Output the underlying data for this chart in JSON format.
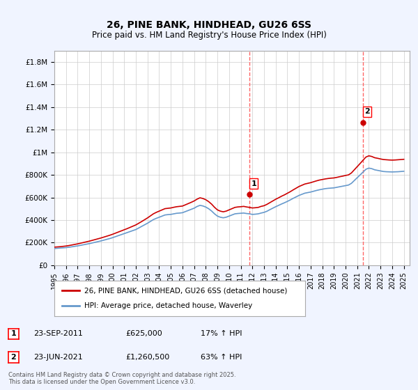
{
  "title": "26, PINE BANK, HINDHEAD, GU26 6SS",
  "subtitle": "Price paid vs. HM Land Registry's House Price Index (HPI)",
  "background_color": "#f0f4ff",
  "plot_bg_color": "#ffffff",
  "ylim": [
    0,
    1900000
  ],
  "yticks": [
    0,
    200000,
    400000,
    600000,
    800000,
    1000000,
    1200000,
    1400000,
    1600000,
    1800000
  ],
  "ytick_labels": [
    "£0",
    "£200K",
    "£400K",
    "£600K",
    "£800K",
    "£1M",
    "£1.2M",
    "£1.4M",
    "£1.6M",
    "£1.8M"
  ],
  "xlim_start": 1995.0,
  "xlim_end": 2025.5,
  "xticks": [
    1995,
    1996,
    1997,
    1998,
    1999,
    2000,
    2001,
    2002,
    2003,
    2004,
    2005,
    2006,
    2007,
    2008,
    2009,
    2010,
    2011,
    2012,
    2013,
    2014,
    2015,
    2016,
    2017,
    2018,
    2019,
    2020,
    2021,
    2022,
    2023,
    2024,
    2025
  ],
  "sale1_x": 2011.73,
  "sale1_y": 625000,
  "sale2_x": 2021.48,
  "sale2_y": 1260500,
  "sale1_label": "1",
  "sale2_label": "2",
  "red_line_color": "#cc0000",
  "blue_line_color": "#6699cc",
  "vline_color": "#ff6666",
  "legend_label_red": "26, PINE BANK, HINDHEAD, GU26 6SS (detached house)",
  "legend_label_blue": "HPI: Average price, detached house, Waverley",
  "table_row1": [
    "1",
    "23-SEP-2011",
    "£625,000",
    "17% ↑ HPI"
  ],
  "table_row2": [
    "2",
    "23-JUN-2021",
    "£1,260,500",
    "63% ↑ HPI"
  ],
  "footer": "Contains HM Land Registry data © Crown copyright and database right 2025.\nThis data is licensed under the Open Government Licence v3.0.",
  "hpi_x": [
    1995.0,
    1995.25,
    1995.5,
    1995.75,
    1996.0,
    1996.25,
    1996.5,
    1996.75,
    1997.0,
    1997.25,
    1997.5,
    1997.75,
    1998.0,
    1998.25,
    1998.5,
    1998.75,
    1999.0,
    1999.25,
    1999.5,
    1999.75,
    2000.0,
    2000.25,
    2000.5,
    2000.75,
    2001.0,
    2001.25,
    2001.5,
    2001.75,
    2002.0,
    2002.25,
    2002.5,
    2002.75,
    2003.0,
    2003.25,
    2003.5,
    2003.75,
    2004.0,
    2004.25,
    2004.5,
    2004.75,
    2005.0,
    2005.25,
    2005.5,
    2005.75,
    2006.0,
    2006.25,
    2006.5,
    2006.75,
    2007.0,
    2007.25,
    2007.5,
    2007.75,
    2008.0,
    2008.25,
    2008.5,
    2008.75,
    2009.0,
    2009.25,
    2009.5,
    2009.75,
    2010.0,
    2010.25,
    2010.5,
    2010.75,
    2011.0,
    2011.25,
    2011.5,
    2011.75,
    2012.0,
    2012.25,
    2012.5,
    2012.75,
    2013.0,
    2013.25,
    2013.5,
    2013.75,
    2014.0,
    2014.25,
    2014.5,
    2014.75,
    2015.0,
    2015.25,
    2015.5,
    2015.75,
    2016.0,
    2016.25,
    2016.5,
    2016.75,
    2017.0,
    2017.25,
    2017.5,
    2017.75,
    2018.0,
    2018.25,
    2018.5,
    2018.75,
    2019.0,
    2019.25,
    2019.5,
    2019.75,
    2020.0,
    2020.25,
    2020.5,
    2020.75,
    2021.0,
    2021.25,
    2021.5,
    2021.75,
    2022.0,
    2022.25,
    2022.5,
    2022.75,
    2023.0,
    2023.25,
    2023.5,
    2023.75,
    2024.0,
    2024.25,
    2024.5,
    2024.75,
    2025.0
  ],
  "hpi_y": [
    148000,
    150000,
    152000,
    154000,
    156000,
    159000,
    163000,
    167000,
    171000,
    176000,
    181000,
    186000,
    191000,
    197000,
    203000,
    209000,
    215000,
    222000,
    229000,
    236000,
    244000,
    253000,
    262000,
    271000,
    280000,
    289000,
    298000,
    307000,
    316000,
    330000,
    344000,
    358000,
    372000,
    388000,
    404000,
    415000,
    425000,
    435000,
    445000,
    448000,
    450000,
    455000,
    460000,
    462000,
    465000,
    475000,
    485000,
    495000,
    505000,
    520000,
    530000,
    525000,
    515000,
    500000,
    480000,
    455000,
    435000,
    425000,
    420000,
    425000,
    435000,
    445000,
    455000,
    458000,
    460000,
    462000,
    458000,
    455000,
    450000,
    452000,
    455000,
    462000,
    468000,
    478000,
    492000,
    505000,
    518000,
    530000,
    542000,
    553000,
    565000,
    578000,
    592000,
    605000,
    618000,
    628000,
    638000,
    643000,
    648000,
    655000,
    662000,
    668000,
    673000,
    678000,
    681000,
    683000,
    685000,
    690000,
    695000,
    700000,
    705000,
    710000,
    725000,
    750000,
    775000,
    800000,
    825000,
    850000,
    860000,
    855000,
    845000,
    840000,
    835000,
    830000,
    828000,
    827000,
    826000,
    827000,
    828000,
    830000,
    832000
  ],
  "red_x": [
    1995.0,
    1995.25,
    1995.5,
    1995.75,
    1996.0,
    1996.25,
    1996.5,
    1996.75,
    1997.0,
    1997.25,
    1997.5,
    1997.75,
    1998.0,
    1998.25,
    1998.5,
    1998.75,
    1999.0,
    1999.25,
    1999.5,
    1999.75,
    2000.0,
    2000.25,
    2000.5,
    2000.75,
    2001.0,
    2001.25,
    2001.5,
    2001.75,
    2002.0,
    2002.25,
    2002.5,
    2002.75,
    2003.0,
    2003.25,
    2003.5,
    2003.75,
    2004.0,
    2004.25,
    2004.5,
    2004.75,
    2005.0,
    2005.25,
    2005.5,
    2005.75,
    2006.0,
    2006.25,
    2006.5,
    2006.75,
    2007.0,
    2007.25,
    2007.5,
    2007.75,
    2008.0,
    2008.25,
    2008.5,
    2008.75,
    2009.0,
    2009.25,
    2009.5,
    2009.75,
    2010.0,
    2010.25,
    2010.5,
    2010.75,
    2011.0,
    2011.25,
    2011.5,
    2011.75,
    2012.0,
    2012.25,
    2012.5,
    2012.75,
    2013.0,
    2013.25,
    2013.5,
    2013.75,
    2014.0,
    2014.25,
    2014.5,
    2014.75,
    2015.0,
    2015.25,
    2015.5,
    2015.75,
    2016.0,
    2016.25,
    2016.5,
    2016.75,
    2017.0,
    2017.25,
    2017.5,
    2017.75,
    2018.0,
    2018.25,
    2018.5,
    2018.75,
    2019.0,
    2019.25,
    2019.5,
    2019.75,
    2020.0,
    2020.25,
    2020.5,
    2020.75,
    2021.0,
    2021.25,
    2021.5,
    2021.75,
    2022.0,
    2022.25,
    2022.5,
    2022.75,
    2023.0,
    2023.25,
    2023.5,
    2023.75,
    2024.0,
    2024.25,
    2024.5,
    2024.75,
    2025.0
  ],
  "red_y": [
    160000,
    162000,
    164000,
    167000,
    170000,
    174000,
    179000,
    184000,
    189000,
    195000,
    201000,
    207000,
    213000,
    220000,
    227000,
    234000,
    241000,
    249000,
    257000,
    265000,
    274000,
    284000,
    294000,
    304000,
    314000,
    324000,
    335000,
    346000,
    357000,
    372000,
    387000,
    403000,
    419000,
    437000,
    455000,
    468000,
    479000,
    490000,
    501000,
    504000,
    507000,
    513000,
    518000,
    521000,
    524000,
    535000,
    546000,
    557000,
    569000,
    585000,
    597000,
    591000,
    580000,
    563000,
    541000,
    513000,
    490000,
    479000,
    473000,
    479000,
    490000,
    501000,
    512000,
    516000,
    518000,
    521000,
    516000,
    512000,
    507000,
    509000,
    512000,
    521000,
    527000,
    539000,
    554000,
    569000,
    584000,
    597000,
    611000,
    623000,
    637000,
    651000,
    667000,
    682000,
    697000,
    708000,
    719000,
    725000,
    731000,
    739000,
    747000,
    754000,
    759000,
    764000,
    768000,
    771000,
    773000,
    778000,
    784000,
    789000,
    795000,
    800000,
    817000,
    845000,
    873000,
    901000,
    930000,
    958000,
    969000,
    963000,
    952000,
    947000,
    941000,
    936000,
    934000,
    932000,
    931000,
    932000,
    934000,
    936000,
    938000
  ]
}
